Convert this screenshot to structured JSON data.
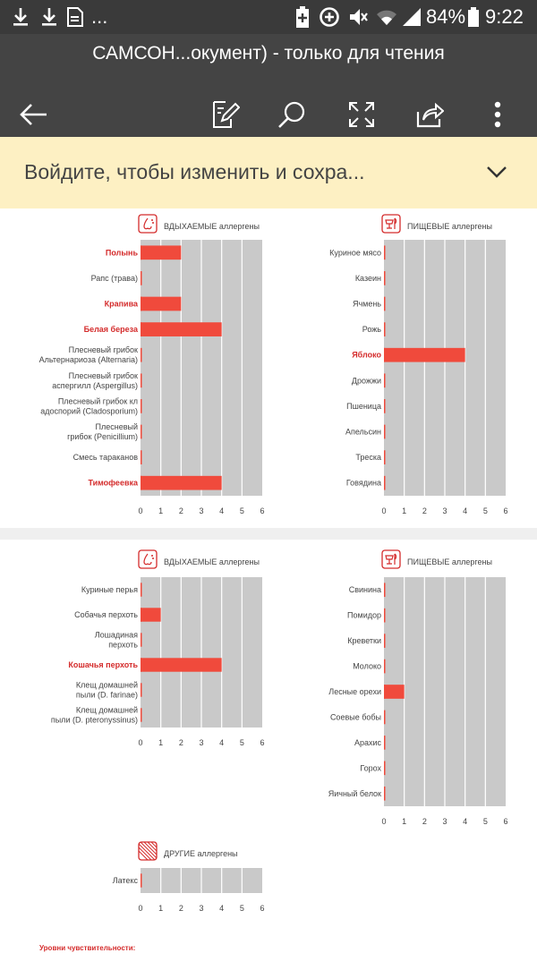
{
  "status_bar": {
    "battery_percent": "84%",
    "time": "9:22",
    "ellipsis": "...",
    "icons": [
      "download-icon",
      "download-icon",
      "file-icon",
      "battery-saver-icon",
      "data-saver-icon",
      "mute-icon",
      "wifi-icon",
      "signal-icon",
      "battery-icon"
    ]
  },
  "title_bar": {
    "title": "САМСОН...окумент) - только для чтения",
    "icons": [
      "back-arrow-icon",
      "edit-icon",
      "search-icon",
      "fullscreen-icon",
      "share-icon",
      "more-icon"
    ]
  },
  "banner": {
    "text": "Войдите, чтобы изменить и сохра...",
    "icon": "chevron-down-icon"
  },
  "colors": {
    "bar": "#f04a3c",
    "highlight_text": "#d42b2b",
    "plot_bg": "#c9c9c9",
    "page_bg": "#efefef",
    "card_bg": "#ffffff"
  },
  "chart_data": [
    {
      "type": "bar",
      "orientation": "horizontal",
      "title_prefix": "ВДЫХАЕМЫЕ",
      "title_suffix": "аллергены",
      "icon": "inhaled-allergen-icon",
      "categories": [
        "Полынь",
        "Рапс (трава)",
        "Крапива",
        "Белая береза",
        "Плесневый грибок\nАльтернариоза (Alternaria)",
        "Плесневый грибок\nаспергилл (Aspergillus)",
        "Плесневый грибок кл\nадоспорий (Cladosporium)",
        "Плесневый\nгрибок (Penicillium)",
        "Смесь тараканов",
        "Тимофеевка"
      ],
      "highlighted": [
        true,
        false,
        true,
        true,
        false,
        false,
        false,
        false,
        false,
        true
      ],
      "values": [
        2,
        0,
        2,
        4,
        0,
        0,
        0,
        0,
        0,
        4
      ],
      "xlim": [
        0,
        6
      ],
      "xticks": [
        "0",
        "1",
        "2",
        "3",
        "4",
        "5",
        "6"
      ],
      "grid": true
    },
    {
      "type": "bar",
      "orientation": "horizontal",
      "title_prefix": "ПИЩЕВЫЕ",
      "title_suffix": "аллергены",
      "icon": "food-allergen-icon",
      "categories": [
        "Куриное мясо",
        "Казеин",
        "Ячмень",
        "Рожь",
        "Яблоко",
        "Дрожжи",
        "Пшеница",
        "Апельсин",
        "Треска",
        "Говядина"
      ],
      "highlighted": [
        false,
        false,
        false,
        false,
        true,
        false,
        false,
        false,
        false,
        false
      ],
      "values": [
        0,
        0,
        0,
        0,
        4,
        0,
        0,
        0,
        0,
        0
      ],
      "xlim": [
        0,
        6
      ],
      "xticks": [
        "0",
        "1",
        "2",
        "3",
        "4",
        "5",
        "6"
      ],
      "grid": true
    },
    {
      "type": "bar",
      "orientation": "horizontal",
      "title_prefix": "ВДЫХАЕМЫЕ",
      "title_suffix": "аллергены",
      "icon": "inhaled-allergen-icon",
      "categories": [
        "Куриные перья",
        "Собачья перхоть",
        "Лошадиная\nперхоть",
        "Кошачья перхоть",
        "Клещ домашней\nпыли (D. farinae)",
        "Клещ домашней\nпыли (D. pteronyssinus)"
      ],
      "highlighted": [
        false,
        false,
        false,
        true,
        false,
        false
      ],
      "values": [
        0,
        1,
        0,
        4,
        0,
        0
      ],
      "xlim": [
        0,
        6
      ],
      "xticks": [
        "0",
        "1",
        "2",
        "3",
        "4",
        "5",
        "6"
      ],
      "grid": true
    },
    {
      "type": "bar",
      "orientation": "horizontal",
      "title_prefix": "ПИЩЕВЫЕ",
      "title_suffix": "аллергены",
      "icon": "food-allergen-icon",
      "categories": [
        "Свинина",
        "Помидор",
        "Креветки",
        "Молоко",
        "Лесные орехи",
        "Соевые бобы",
        "Арахис",
        "Горох",
        "Яичный белок"
      ],
      "highlighted": [
        false,
        false,
        false,
        false,
        false,
        false,
        false,
        false,
        false
      ],
      "values": [
        0,
        0,
        0,
        0,
        1,
        0,
        0,
        0,
        0
      ],
      "xlim": [
        0,
        6
      ],
      "xticks": [
        "0",
        "1",
        "2",
        "3",
        "4",
        "5",
        "6"
      ],
      "grid": true
    },
    {
      "type": "bar",
      "orientation": "horizontal",
      "title_prefix": "ДРУГИЕ",
      "title_suffix": "аллергены",
      "icon": "other-allergen-icon",
      "categories": [
        "Латекс"
      ],
      "highlighted": [
        false
      ],
      "values": [
        0
      ],
      "xlim": [
        0,
        6
      ],
      "xticks": [
        "0",
        "1",
        "2",
        "3",
        "4",
        "5",
        "6"
      ],
      "grid": true
    }
  ],
  "legend": {
    "title": "Уровни чувствительности:"
  }
}
